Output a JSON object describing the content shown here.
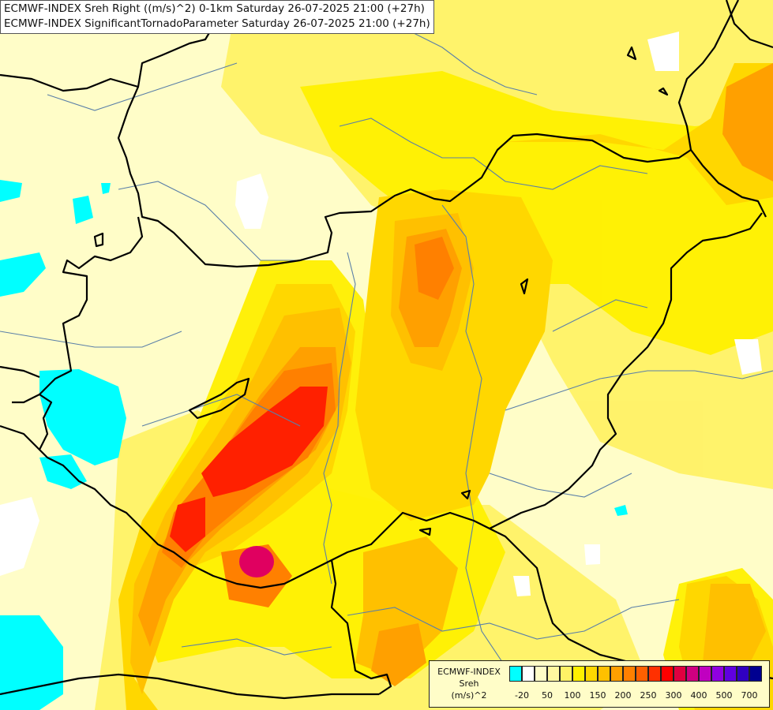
{
  "header": {
    "line1": "ECMWF-INDEX Sreh Right ((m/s)^2) 0-1km Saturday 26-07-2025 21:00 (+27h)",
    "line2": "ECMWF-INDEX SignificantTornadoParameter Saturday 26-07-2025 21:00 (+27h)"
  },
  "legend": {
    "title_line1": "ECMWF-INDEX",
    "title_line2": "Sreh",
    "title_line3": "(m/s)^2",
    "colors": [
      "#00ffff",
      "#ffffff",
      "#fffdc8",
      "#fff7a0",
      "#fff266",
      "#fff000",
      "#ffd700",
      "#ffc000",
      "#ffa000",
      "#ff8000",
      "#ff6000",
      "#ff3000",
      "#ff0000",
      "#e00040",
      "#d00080",
      "#c000c0",
      "#9000e0",
      "#6000e0",
      "#3000c0",
      "#000090"
    ],
    "ticks": [
      "-20",
      "50",
      "100",
      "150",
      "200",
      "250",
      "300",
      "400",
      "500",
      "700"
    ]
  },
  "map": {
    "colors": {
      "background": "#fffdc8",
      "cyan": "#00ffff",
      "white": "#ffffff",
      "yellow_light": "#fff266",
      "yellow": "#fff000",
      "gold": "#ffd700",
      "orange_light": "#ffc000",
      "orange": "#ffa000",
      "orange_dark": "#ff8000",
      "red_orange": "#ff6000",
      "red": "#ff2000",
      "magenta": "#e00060",
      "border": "#000000",
      "river": "#5a7fa8"
    }
  }
}
